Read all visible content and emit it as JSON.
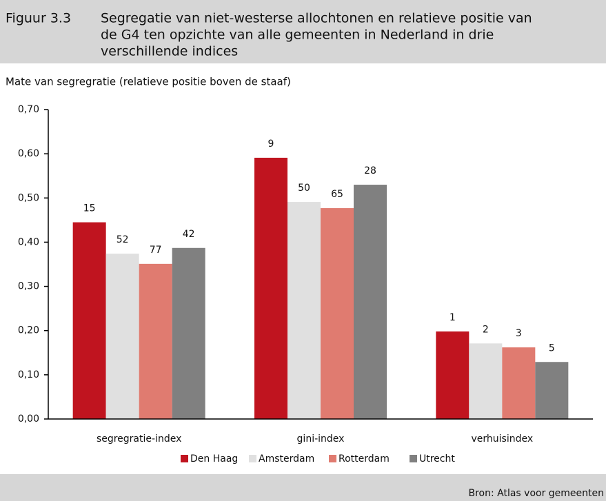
{
  "chart_data": {
    "type": "bar",
    "figure_label": "Figuur 3.3",
    "title_lines": [
      "Segregatie van niet-westerse allochtonen en relatieve positie van",
      "de G4 ten opzichte van alle gemeenten in Nederland in drie",
      "verschillende indices"
    ],
    "y_axis_label": "Mate van segregratie (relatieve positie boven de staaf)",
    "categories": [
      "segregratie-index",
      "gini-index",
      "verhuisindex"
    ],
    "series": [
      {
        "name": "Den Haag",
        "color": "#c0141f",
        "values": [
          0.445,
          0.591,
          0.198
        ],
        "rank_labels": [
          15,
          9,
          1
        ]
      },
      {
        "name": "Amsterdam",
        "color": "#e0e0e0",
        "values": [
          0.374,
          0.491,
          0.171
        ],
        "rank_labels": [
          52,
          50,
          2
        ]
      },
      {
        "name": "Rotterdam",
        "color": "#e07b70",
        "values": [
          0.351,
          0.477,
          0.162
        ],
        "rank_labels": [
          77,
          65,
          3
        ]
      },
      {
        "name": "Utrecht",
        "color": "#808080",
        "values": [
          0.387,
          0.53,
          0.129
        ],
        "rank_labels": [
          42,
          28,
          5
        ]
      }
    ],
    "ylim": [
      0,
      0.7
    ],
    "yticks": [
      {
        "value": 0,
        "label": "0,00"
      },
      {
        "value": 0.1,
        "label": "0,10"
      },
      {
        "value": 0.2,
        "label": "0,20"
      },
      {
        "value": 0.3,
        "label": "0,30"
      },
      {
        "value": 0.4,
        "label": "0,40"
      },
      {
        "value": 0.5,
        "label": "0,50"
      },
      {
        "value": 0.6,
        "label": "0,60"
      },
      {
        "value": 0.7,
        "label": "0,70"
      }
    ],
    "legend": "bottom",
    "source": "Bron: Atlas voor gemeenten"
  }
}
